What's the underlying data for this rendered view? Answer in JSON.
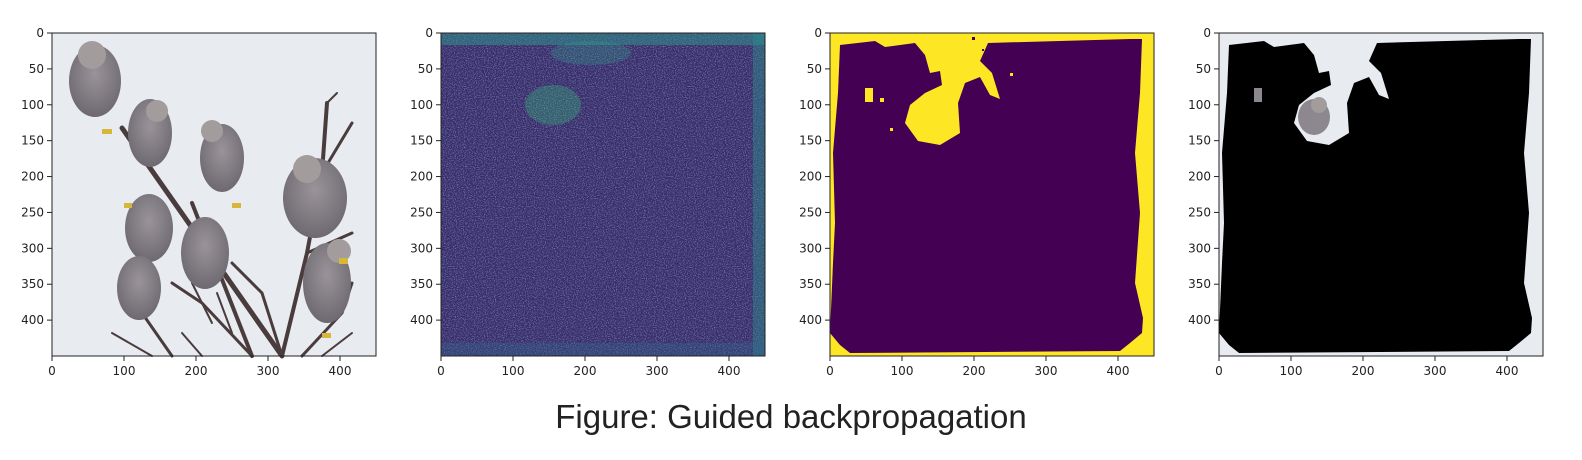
{
  "figure": {
    "caption": "Figure: Guided backpropagation"
  },
  "chart_data": [
    {
      "type": "heatmap",
      "panel": "input image",
      "colormap": "rgb photo",
      "xlim": [
        0,
        450
      ],
      "ylim": [
        450,
        0
      ],
      "x_ticks": [
        0,
        100,
        200,
        300,
        400
      ],
      "y_ticks": [
        0,
        50,
        100,
        150,
        200,
        250,
        300,
        350,
        400
      ],
      "title": "",
      "xlabel": "",
      "ylabel": ""
    },
    {
      "type": "heatmap",
      "panel": "gradient map",
      "colormap": "viridis",
      "xlim": [
        0,
        450
      ],
      "ylim": [
        450,
        0
      ],
      "x_ticks": [
        0,
        100,
        200,
        300,
        400
      ],
      "y_ticks": [
        0,
        50,
        100,
        150,
        200,
        250,
        300,
        350,
        400
      ],
      "title": "",
      "xlabel": "",
      "ylabel": ""
    },
    {
      "type": "heatmap",
      "panel": "binary mask",
      "colormap": "viridis (two values)",
      "xlim": [
        0,
        450
      ],
      "ylim": [
        450,
        0
      ],
      "x_ticks": [
        0,
        100,
        200,
        300,
        400
      ],
      "y_ticks": [
        0,
        50,
        100,
        150,
        200,
        250,
        300,
        350,
        400
      ],
      "title": "",
      "xlabel": "",
      "ylabel": ""
    },
    {
      "type": "heatmap",
      "panel": "masked image",
      "colormap": "rgb photo",
      "xlim": [
        0,
        450
      ],
      "ylim": [
        450,
        0
      ],
      "x_ticks": [
        0,
        100,
        200,
        300,
        400
      ],
      "y_ticks": [
        0,
        50,
        100,
        150,
        200,
        250,
        300,
        350,
        400
      ],
      "title": "",
      "xlabel": "",
      "ylabel": ""
    }
  ],
  "colors": {
    "photo_background": "#e8ebf0",
    "bird_body": "#8d8890",
    "branch": "#4a3c3c",
    "viridis_dark": "#440154",
    "viridis_mid": "#31688e",
    "viridis_bright": "#35b779",
    "viridis_yellow": "#fde725",
    "mask_black": "#000000"
  }
}
